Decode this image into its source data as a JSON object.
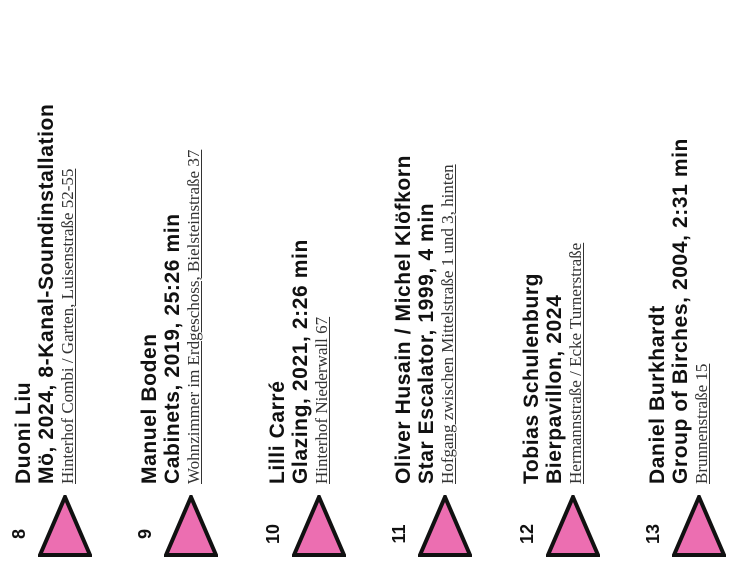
{
  "marker_color": "#ec6eb1",
  "marker_icon": "pink-triangle-marker",
  "entries": [
    {
      "number": "8",
      "artist": "Duoni Liu",
      "work": "Mö, 2024, 8-Kanal-Soundinstallation",
      "location": "Hinterhof Combi / Garten, Luisenstraße 52-55"
    },
    {
      "number": "9",
      "artist": "Manuel Boden",
      "work": "Cabinets, 2019, 25:26 min",
      "location": "Wohnzimmer im Erdgeschoss, Bielsteinstraße 37"
    },
    {
      "number": "10",
      "artist": "Lilli Carré",
      "work": "Glazing, 2021, 2:26 min",
      "location": "Hinterhof Niederwall 67"
    },
    {
      "number": "11",
      "artist": "Oliver Husain / Michel Klöfkorn",
      "work": "Star Escalator, 1999, 4 min",
      "location": "Hofgang zwischen Mittelstraße 1 und 3, hinten"
    },
    {
      "number": "12",
      "artist": "Tobias Schulenburg",
      "work": "Bierpavillon, 2024",
      "location": "Hermannstraße / Ecke Turnerstraße"
    },
    {
      "number": "13",
      "artist": "Daniel Burkhardt",
      "work": "Group of Birches, 2004, 2:31 min",
      "location": "Brunnenstraße 15"
    }
  ]
}
